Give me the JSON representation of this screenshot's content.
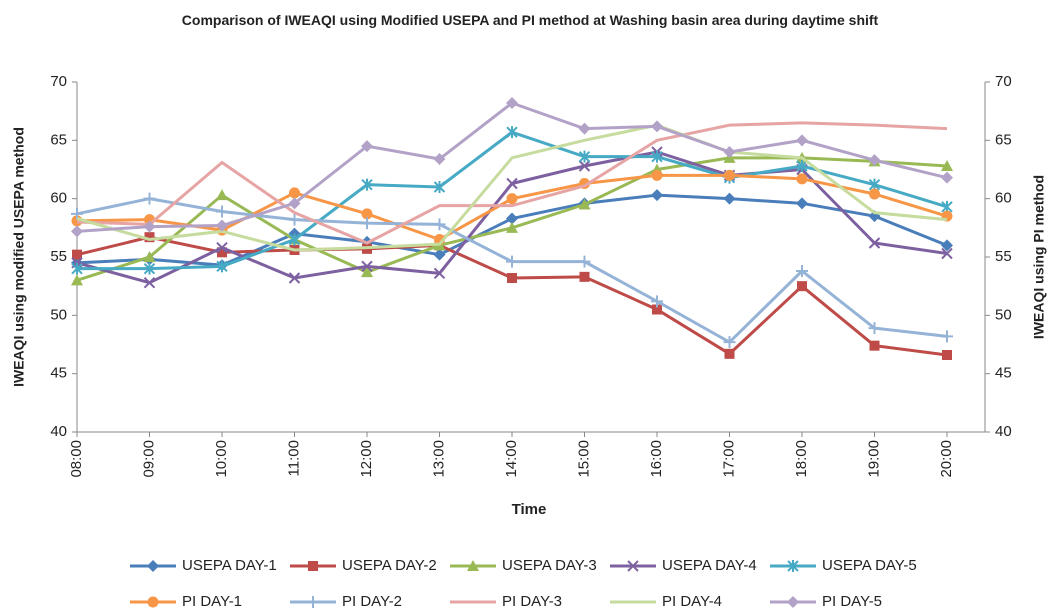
{
  "chart_data": {
    "type": "line",
    "title": "Comparison of IWEAQI using Modified USEPA and PI method at Washing basin area during daytime shift",
    "x_label": "Time",
    "y_label": "IWEAQI using modified USEPA method",
    "y2_label": "IWEAQI using PI method",
    "categories": [
      "08:00",
      "09:00",
      "10:00",
      "11:00",
      "12:00",
      "13:00",
      "14:00",
      "15:00",
      "16:00",
      "17:00",
      "18:00",
      "19:00",
      "20:00"
    ],
    "ylim": [
      40,
      70
    ],
    "yticks": [
      40,
      45,
      50,
      55,
      60,
      65,
      70
    ],
    "y2lim": [
      40,
      70
    ],
    "y2ticks": [
      40,
      45,
      50,
      55,
      60,
      65,
      70
    ],
    "grid": false,
    "legend": "bottom",
    "series": [
      {
        "name": "USEPA DAY-1",
        "color": "#4a7ebb",
        "marker": "diamond",
        "values": [
          54.5,
          54.8,
          54.3,
          57.0,
          56.3,
          55.2,
          58.3,
          59.6,
          60.3,
          60.0,
          59.6,
          58.5,
          56.0
        ]
      },
      {
        "name": "USEPA DAY-2",
        "color": "#be4b48",
        "marker": "square",
        "values": [
          55.2,
          56.7,
          55.4,
          55.6,
          55.7,
          56.0,
          53.2,
          53.3,
          50.5,
          46.7,
          52.5,
          47.4,
          46.6
        ]
      },
      {
        "name": "USEPA DAY-3",
        "color": "#98b954",
        "marker": "triangle",
        "values": [
          53.0,
          55.0,
          60.3,
          56.5,
          53.7,
          56.0,
          57.5,
          59.5,
          62.5,
          63.5,
          63.5,
          63.2,
          62.8
        ]
      },
      {
        "name": "USEPA DAY-4",
        "color": "#7d60a0",
        "marker": "x",
        "values": [
          54.5,
          52.8,
          55.8,
          53.2,
          54.2,
          53.6,
          61.3,
          62.8,
          64.0,
          62.0,
          62.5,
          56.2,
          55.3
        ]
      },
      {
        "name": "USEPA DAY-5",
        "color": "#46aac5",
        "marker": "star",
        "values": [
          54.0,
          54.0,
          54.2,
          56.5,
          61.2,
          61.0,
          65.7,
          63.6,
          63.6,
          61.8,
          62.8,
          61.2,
          59.3
        ]
      },
      {
        "name": "PI DAY-1",
        "color": "#f79646",
        "marker": "circle",
        "axis": "y2",
        "values": [
          58.1,
          58.2,
          57.3,
          60.5,
          58.7,
          56.5,
          60.0,
          61.3,
          62.0,
          62.0,
          61.7,
          60.4,
          58.5
        ]
      },
      {
        "name": "PI DAY-2",
        "color": "#95b3d7",
        "marker": "plus",
        "axis": "y2",
        "values": [
          58.7,
          60.0,
          58.9,
          58.2,
          57.9,
          57.8,
          54.6,
          54.6,
          51.2,
          47.7,
          53.8,
          48.9,
          48.2
        ]
      },
      {
        "name": "PI DAY-3",
        "color": "#e6a5a4",
        "marker": "none",
        "axis": "y2",
        "values": [
          58.0,
          57.8,
          63.1,
          58.8,
          56.2,
          59.4,
          59.4,
          61.1,
          65.0,
          66.3,
          66.5,
          66.3,
          66.0
        ]
      },
      {
        "name": "PI DAY-4",
        "color": "#c6dc9e",
        "marker": "none",
        "axis": "y2",
        "values": [
          58.3,
          56.5,
          57.2,
          55.6,
          55.8,
          56.1,
          63.5,
          65.0,
          66.3,
          64.0,
          63.5,
          58.8,
          58.2
        ]
      },
      {
        "name": "PI DAY-5",
        "color": "#b3a2c7",
        "marker": "diamond",
        "axis": "y2",
        "values": [
          57.2,
          57.6,
          57.7,
          59.6,
          64.5,
          63.4,
          68.2,
          66.0,
          66.2,
          64.0,
          65.0,
          63.3,
          61.8
        ]
      }
    ]
  }
}
